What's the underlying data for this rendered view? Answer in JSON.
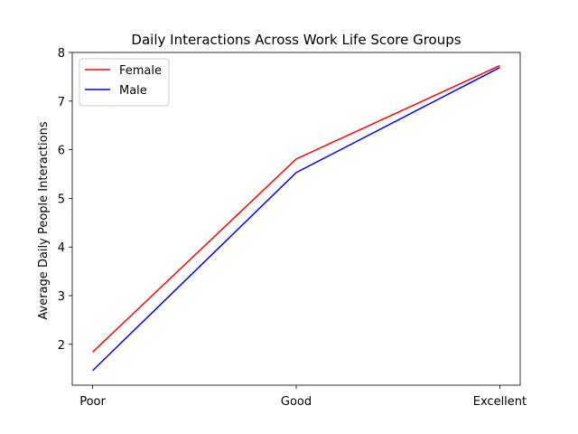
{
  "chart_data": {
    "type": "line",
    "title": "Daily Interactions Across Work Life Score Groups",
    "xlabel": "",
    "ylabel": "Average Daily People Interactions",
    "categories": [
      "Poor",
      "Good",
      "Excellent"
    ],
    "series": [
      {
        "name": "Female",
        "color": "#ff0000",
        "values": [
          1.84,
          5.81,
          7.73
        ]
      },
      {
        "name": "Male",
        "color": "#0000ff",
        "values": [
          1.46,
          5.53,
          7.69
        ]
      }
    ],
    "ylim": [
      1.16,
      8.0
    ],
    "yticks": [
      2,
      3,
      4,
      5,
      6,
      7,
      8
    ],
    "grid": false,
    "legend": "top-left"
  }
}
